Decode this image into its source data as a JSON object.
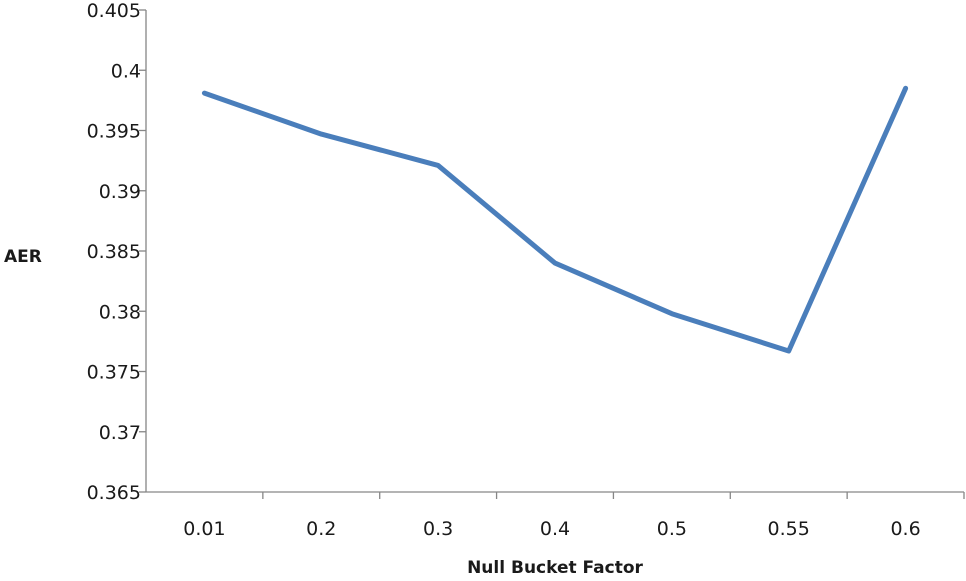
{
  "chart_data": {
    "type": "line",
    "title": "",
    "xlabel": "Null Bucket Factor",
    "ylabel": "AER",
    "categories": [
      "0.01",
      "0.2",
      "0.3",
      "0.4",
      "0.5",
      "0.55",
      "0.6"
    ],
    "series": [
      {
        "values": [
          0.3981,
          0.3947,
          0.3921,
          0.384,
          0.3798,
          0.3767,
          0.3985
        ],
        "color": "#4a7ebb"
      }
    ],
    "ylim": [
      0.365,
      0.405
    ],
    "yticks": [
      "0.365",
      "0.37",
      "0.375",
      "0.38",
      "0.385",
      "0.39",
      "0.395",
      "0.4",
      "0.405"
    ],
    "grid": false,
    "legend": "none"
  }
}
